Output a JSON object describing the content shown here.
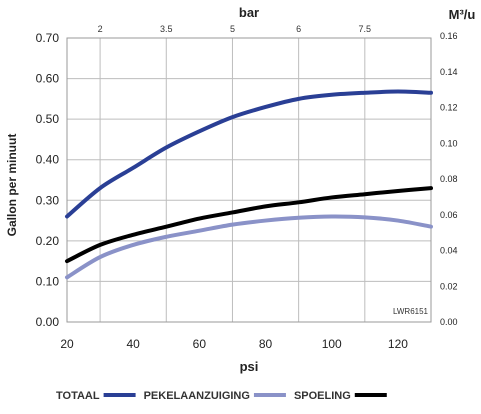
{
  "chart_data": {
    "type": "line",
    "xlabel": "psi",
    "ylabel": "Gallon per minuut",
    "top_axis_label": "bar",
    "right_axis_label": "M³/u",
    "annotation": "LWR6151",
    "xlim": [
      20,
      130
    ],
    "ylim": [
      0.0,
      0.7
    ],
    "grid": true,
    "legend_position": "bottom",
    "x_ticks": [
      "20",
      "40",
      "60",
      "80",
      "100",
      "120"
    ],
    "x_tick_values": [
      20,
      40,
      60,
      80,
      100,
      120
    ],
    "y_ticks": [
      "0.00",
      "0.10",
      "0.20",
      "0.30",
      "0.40",
      "0.50",
      "0.60",
      "0.70"
    ],
    "y_tick_values": [
      0.0,
      0.1,
      0.2,
      0.3,
      0.4,
      0.5,
      0.6,
      0.7
    ],
    "top_ticks": [
      "2",
      "3.5",
      "5",
      "6",
      "7.5"
    ],
    "top_tick_x_psi": [
      30,
      50,
      70,
      90,
      110
    ],
    "right_ticks": [
      "0.00",
      "0.02",
      "0.04",
      "0.06",
      "0.08",
      "0.10",
      "0.12",
      "0.14",
      "0.16"
    ],
    "right_tick_gpm": [
      0.0,
      0.0881,
      0.1761,
      0.2642,
      0.3522,
      0.4403,
      0.5283,
      0.6164,
      0.7044
    ],
    "x": [
      20,
      30,
      40,
      50,
      60,
      70,
      80,
      90,
      100,
      110,
      120,
      130
    ],
    "series": [
      {
        "name": "TOTAAL",
        "color": "#2a3f95",
        "values": [
          0.26,
          0.33,
          0.38,
          0.43,
          0.47,
          0.505,
          0.53,
          0.55,
          0.56,
          0.565,
          0.568,
          0.565
        ]
      },
      {
        "name": "PEKELAANZUIGING",
        "color": "#8a92c8",
        "values": [
          0.11,
          0.16,
          0.19,
          0.21,
          0.225,
          0.24,
          0.25,
          0.257,
          0.26,
          0.258,
          0.25,
          0.235
        ]
      },
      {
        "name": "SPOELING",
        "color": "#000000",
        "values": [
          0.15,
          0.19,
          0.215,
          0.235,
          0.255,
          0.27,
          0.285,
          0.295,
          0.307,
          0.315,
          0.323,
          0.33
        ]
      }
    ]
  }
}
